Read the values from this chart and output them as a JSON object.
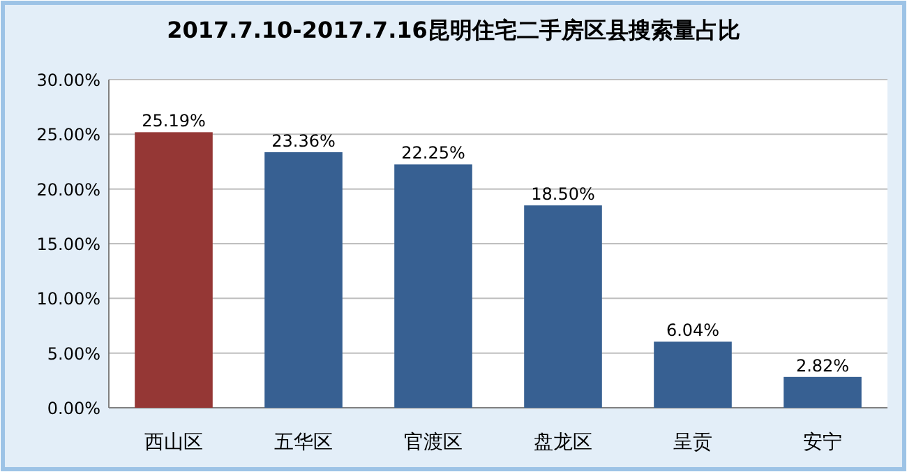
{
  "chart_data": {
    "type": "bar",
    "title": "2017.7.10-2017.7.16昆明住宅二手房区县搜索量占比",
    "categories": [
      "西山区",
      "五华区",
      "官渡区",
      "盘龙区",
      "呈贡",
      "安宁"
    ],
    "values": [
      25.19,
      23.36,
      22.25,
      18.5,
      6.04,
      2.82
    ],
    "colors": [
      "#953735",
      "#376092",
      "#376092",
      "#376092",
      "#376092",
      "#376092"
    ],
    "value_labels": [
      "25.19%",
      "23.36%",
      "22.25%",
      "18.50%",
      "6.04%",
      "2.82%"
    ],
    "ylim": [
      0,
      30
    ],
    "yticks": [
      {
        "value": 0,
        "label": "0.00%"
      },
      {
        "value": 5,
        "label": "5.00%"
      },
      {
        "value": 10,
        "label": "10.00%"
      },
      {
        "value": 15,
        "label": "15.00%"
      },
      {
        "value": 20,
        "label": "20.00%"
      },
      {
        "value": 25,
        "label": "25.00%"
      },
      {
        "value": 30,
        "label": "30.00%"
      }
    ],
    "grid": "y"
  }
}
